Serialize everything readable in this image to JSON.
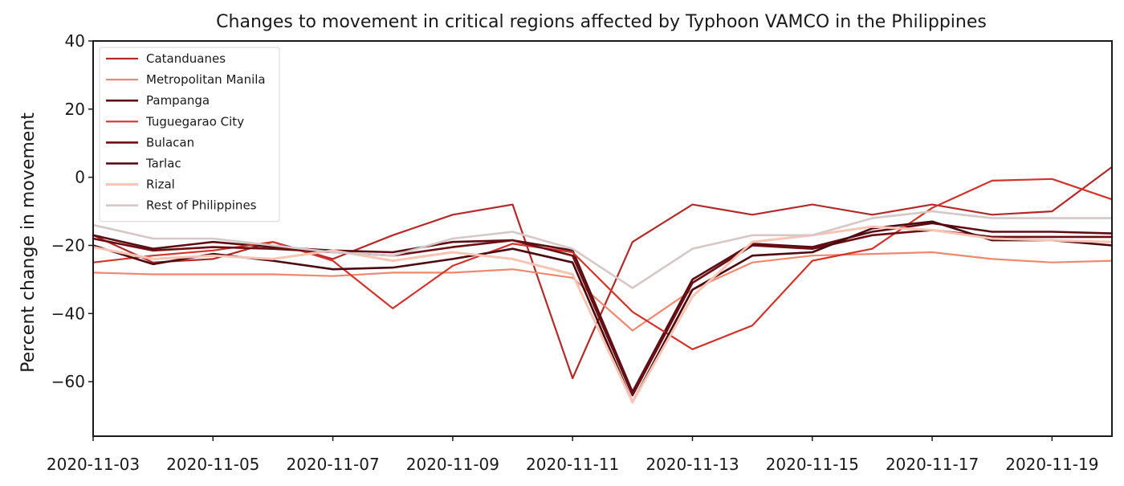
{
  "chart_data": {
    "type": "line",
    "title": "Changes to movement in critical regions affected by Typhoon VAMCO in the Philippines",
    "xlabel": "",
    "ylabel": "Percent change in movement",
    "ylim": [
      -76,
      40
    ],
    "y_ticks": [
      40,
      20,
      0,
      -20,
      -40,
      -60
    ],
    "y_tick_labels": [
      "40",
      "20",
      "0",
      "−20",
      "−40",
      "−60"
    ],
    "x": [
      "2020-11-03",
      "2020-11-04",
      "2020-11-05",
      "2020-11-06",
      "2020-11-07",
      "2020-11-08",
      "2020-11-09",
      "2020-11-10",
      "2020-11-11",
      "2020-11-12",
      "2020-11-13",
      "2020-11-14",
      "2020-11-15",
      "2020-11-16",
      "2020-11-17",
      "2020-11-18",
      "2020-11-19",
      "2020-11-20"
    ],
    "x_ticks": [
      "2020-11-03",
      "2020-11-05",
      "2020-11-07",
      "2020-11-09",
      "2020-11-11",
      "2020-11-13",
      "2020-11-15",
      "2020-11-17",
      "2020-11-19"
    ],
    "grid": false,
    "legend_position": "top-left",
    "series": [
      {
        "name": "Catanduanes",
        "color": "#b22a2a",
        "width": 2.2,
        "values": [
          -17,
          -25,
          -24,
          -19,
          -24,
          -17,
          -11,
          -8,
          -59,
          -19,
          -8,
          -11,
          -8,
          -11,
          -8,
          -11,
          -10,
          3
        ]
      },
      {
        "name": "Metropolitan Manila",
        "color": "#f08870",
        "width": 2.2,
        "values": [
          -28,
          -28.5,
          -28.5,
          -28.5,
          -29,
          -28,
          -28,
          -27,
          -29.5,
          -45,
          -33,
          -25,
          -23,
          -22.5,
          -22,
          -24,
          -25,
          -24.5
        ]
      },
      {
        "name": "Pampanga",
        "color": "#5a0e14",
        "width": 2.6,
        "values": [
          -17,
          -21,
          -19,
          -20.5,
          -21.5,
          -22,
          -19,
          -18.5,
          -21.5,
          -63,
          -30,
          -19.5,
          -20.5,
          -16,
          -13.5,
          -16,
          -16,
          -16.5
        ]
      },
      {
        "name": "Tuguegarao City",
        "color": "#d0342c",
        "width": 2.2,
        "values": [
          -25,
          -23,
          -21.5,
          -19,
          -24.5,
          -38.5,
          -26,
          -19.5,
          -22,
          -39.5,
          -50.5,
          -43.5,
          -24.5,
          -21,
          -9,
          -1,
          -0.5,
          -6.5
        ]
      },
      {
        "name": "Bulacan",
        "color": "#6b0f15",
        "width": 2.6,
        "values": [
          -18,
          -21.5,
          -20.5,
          -21,
          -22,
          -23,
          -20.5,
          -18.5,
          -23,
          -64,
          -31,
          -20,
          -21,
          -17,
          -15.5,
          -17.5,
          -17.5,
          -17.5
        ]
      },
      {
        "name": "Tarlac",
        "color": "#4a0a10",
        "width": 2.6,
        "values": [
          -20,
          -25.5,
          -22.5,
          -24.5,
          -27,
          -26.5,
          -24,
          -21,
          -25,
          -66,
          -33,
          -23,
          -22,
          -15,
          -13,
          -18.5,
          -18.5,
          -20
        ]
      },
      {
        "name": "Rizal",
        "color": "#f8c4b4",
        "width": 3.0,
        "values": [
          -20.5,
          -24,
          -23,
          -24,
          -21.5,
          -24.5,
          -22,
          -24,
          -28.5,
          -66,
          -35,
          -19,
          -17,
          -14.5,
          -15.5,
          -18,
          -18.5,
          -19
        ]
      },
      {
        "name": "Rest of Philippines",
        "color": "#d6c8c8",
        "width": 2.6,
        "values": [
          -14,
          -18,
          -18,
          -20,
          -22,
          -23,
          -18,
          -16,
          -21,
          -32.5,
          -21,
          -17,
          -17,
          -12,
          -10,
          -12,
          -12,
          -12
        ]
      }
    ]
  }
}
